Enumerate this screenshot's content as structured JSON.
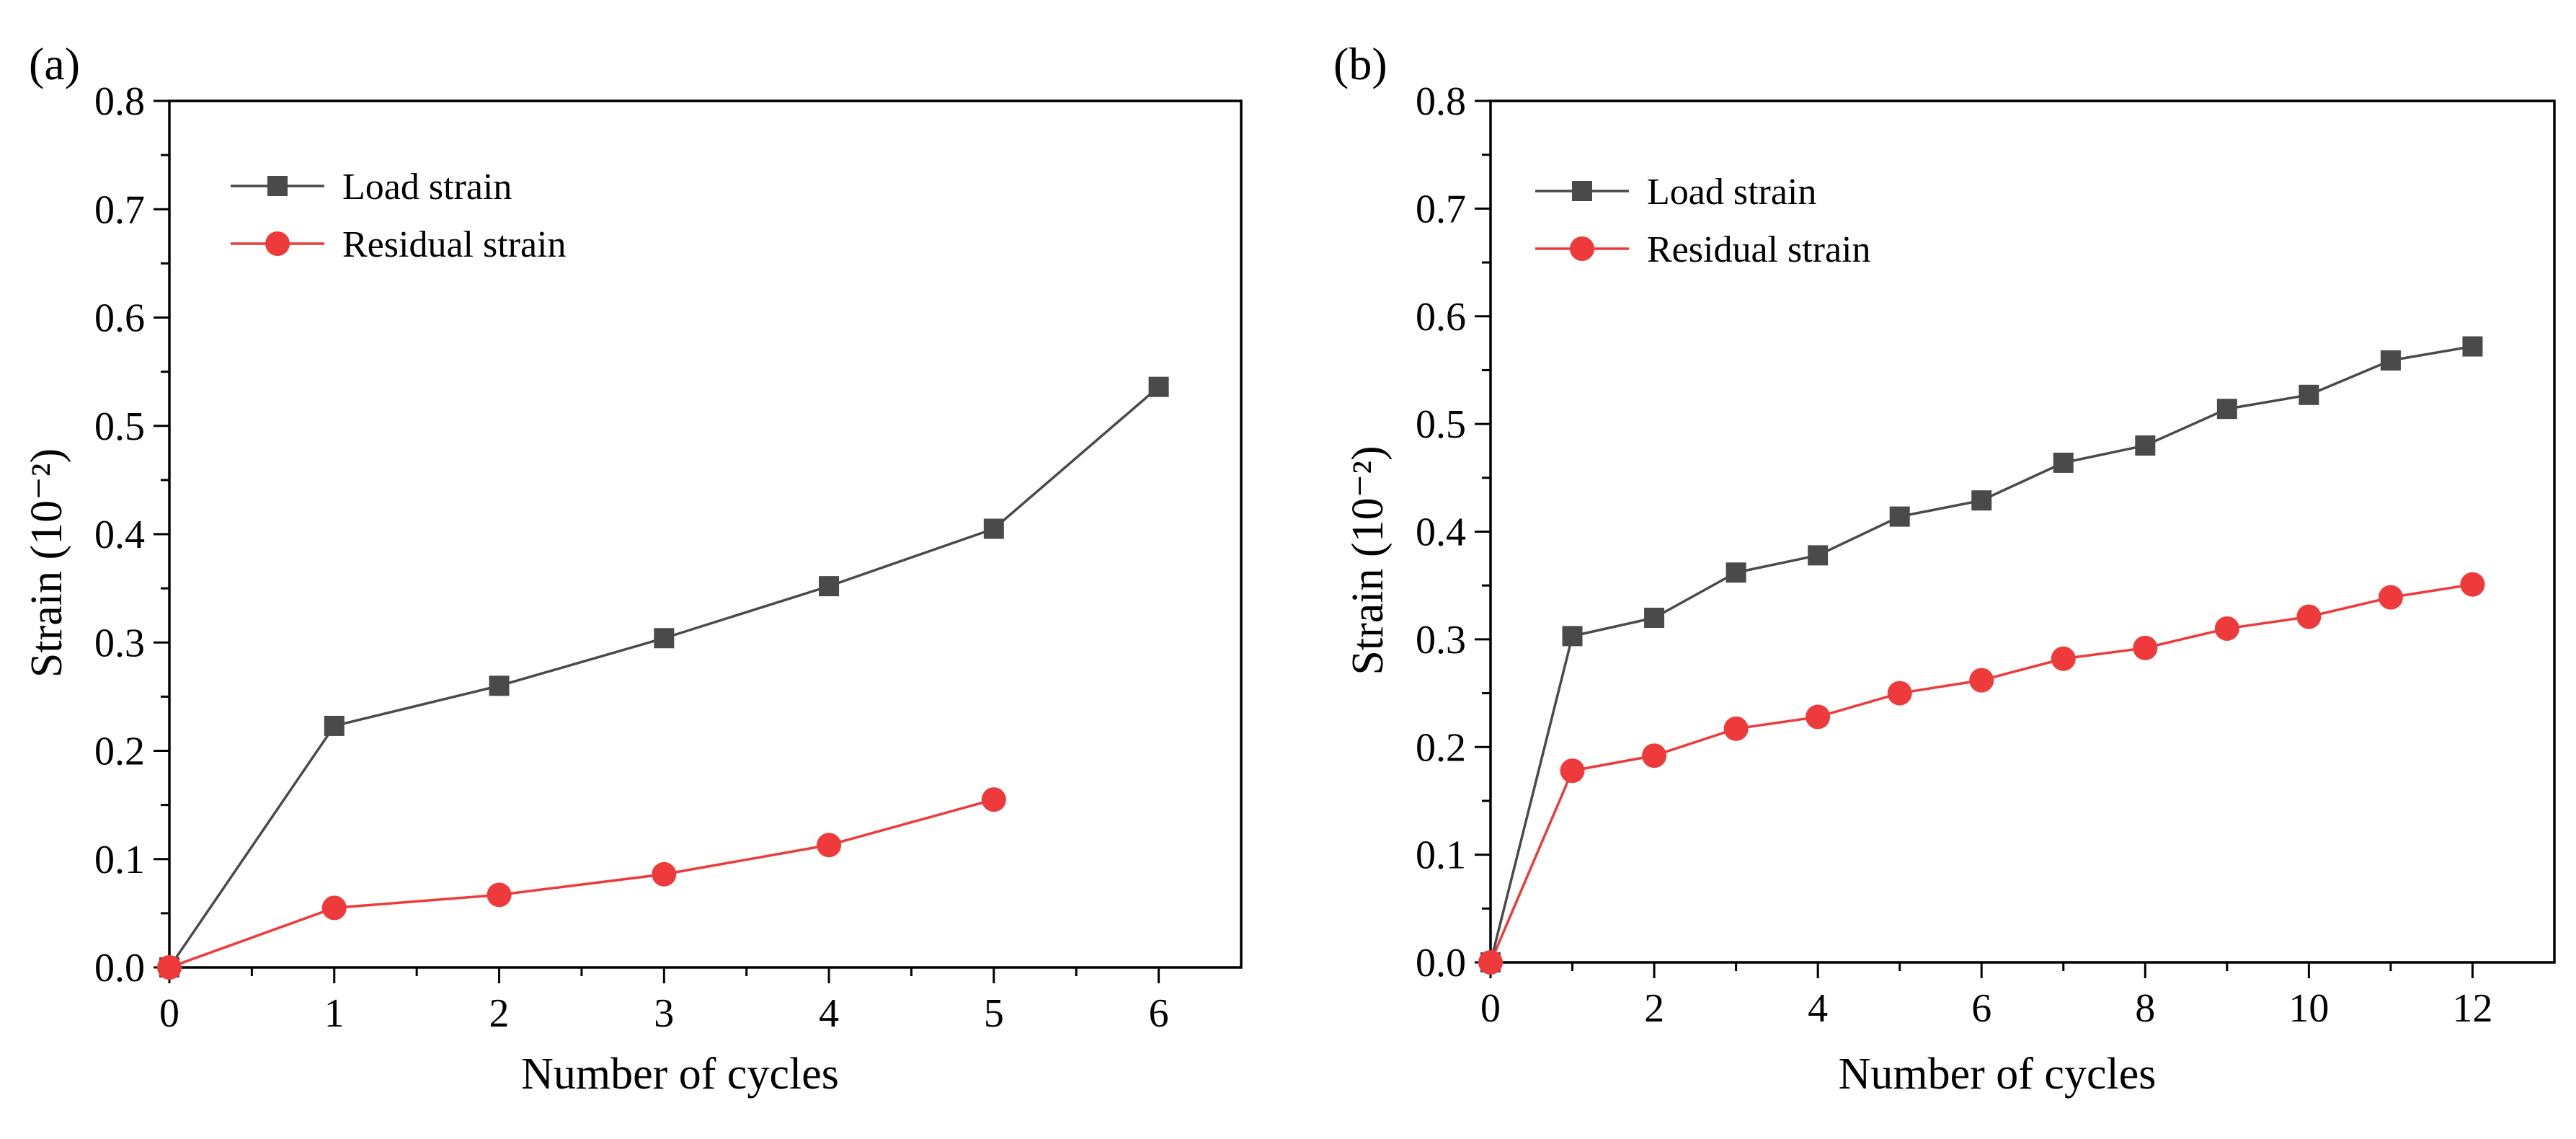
{
  "colors": {
    "load": "#4a4a4a",
    "residual": "#ee3a3a"
  },
  "chart_data": [
    {
      "type": "line",
      "panel_label": "(a)",
      "title": "",
      "xlabel": "Number of cycles",
      "ylabel": "Strain (10⁻²)",
      "xlim": [
        0,
        6.5
      ],
      "ylim": [
        0,
        0.8
      ],
      "x_ticks": [
        0,
        1,
        2,
        3,
        4,
        5,
        6
      ],
      "x_tick_labels": [
        "0",
        "1",
        "2",
        "3",
        "4",
        "5",
        "6"
      ],
      "y_ticks": [
        0,
        0.1,
        0.2,
        0.3,
        0.4,
        0.5,
        0.6,
        0.7,
        0.8
      ],
      "y_tick_labels": [
        "0.0",
        "0.1",
        "0.2",
        "0.3",
        "0.4",
        "0.5",
        "0.6",
        "0.7",
        "0.8"
      ],
      "grid": false,
      "legend_position": "top-left",
      "series": [
        {
          "name": "Load strain",
          "marker": "square",
          "color": "#4a4a4a",
          "x": [
            0,
            1,
            2,
            3,
            4,
            5,
            6
          ],
          "y": [
            0,
            0.223,
            0.26,
            0.304,
            0.352,
            0.405,
            0.536
          ]
        },
        {
          "name": "Residual strain",
          "marker": "circle",
          "color": "#ee3a3a",
          "x": [
            0,
            1,
            2,
            3,
            4,
            5
          ],
          "y": [
            0,
            0.055,
            0.067,
            0.086,
            0.113,
            0.155
          ]
        }
      ]
    },
    {
      "type": "line",
      "panel_label": "(b)",
      "title": "",
      "xlabel": "Number of cycles",
      "ylabel": "Strain (10⁻²)",
      "xlim": [
        0,
        13
      ],
      "ylim": [
        0,
        0.8
      ],
      "x_ticks": [
        0,
        2,
        4,
        6,
        8,
        10,
        12
      ],
      "x_tick_labels": [
        "0",
        "2",
        "4",
        "6",
        "8",
        "10",
        "12"
      ],
      "y_ticks": [
        0,
        0.1,
        0.2,
        0.3,
        0.4,
        0.5,
        0.6,
        0.7,
        0.8
      ],
      "y_tick_labels": [
        "0.0",
        "0.1",
        "0.2",
        "0.3",
        "0.4",
        "0.5",
        "0.6",
        "0.7",
        "0.8"
      ],
      "grid": false,
      "legend_position": "top-left",
      "series": [
        {
          "name": "Load strain",
          "marker": "square",
          "color": "#4a4a4a",
          "x": [
            0,
            1,
            2,
            3,
            4,
            5,
            6,
            7,
            8,
            9,
            10,
            11,
            12
          ],
          "y": [
            0,
            0.303,
            0.32,
            0.362,
            0.378,
            0.414,
            0.429,
            0.464,
            0.48,
            0.514,
            0.527,
            0.559,
            0.572
          ]
        },
        {
          "name": "Residual strain",
          "marker": "circle",
          "color": "#ee3a3a",
          "x": [
            0,
            1,
            2,
            3,
            4,
            5,
            6,
            7,
            8,
            9,
            10,
            11,
            12
          ],
          "y": [
            0,
            0.178,
            0.192,
            0.217,
            0.228,
            0.25,
            0.262,
            0.282,
            0.292,
            0.31,
            0.321,
            0.339,
            0.351
          ]
        }
      ]
    }
  ]
}
